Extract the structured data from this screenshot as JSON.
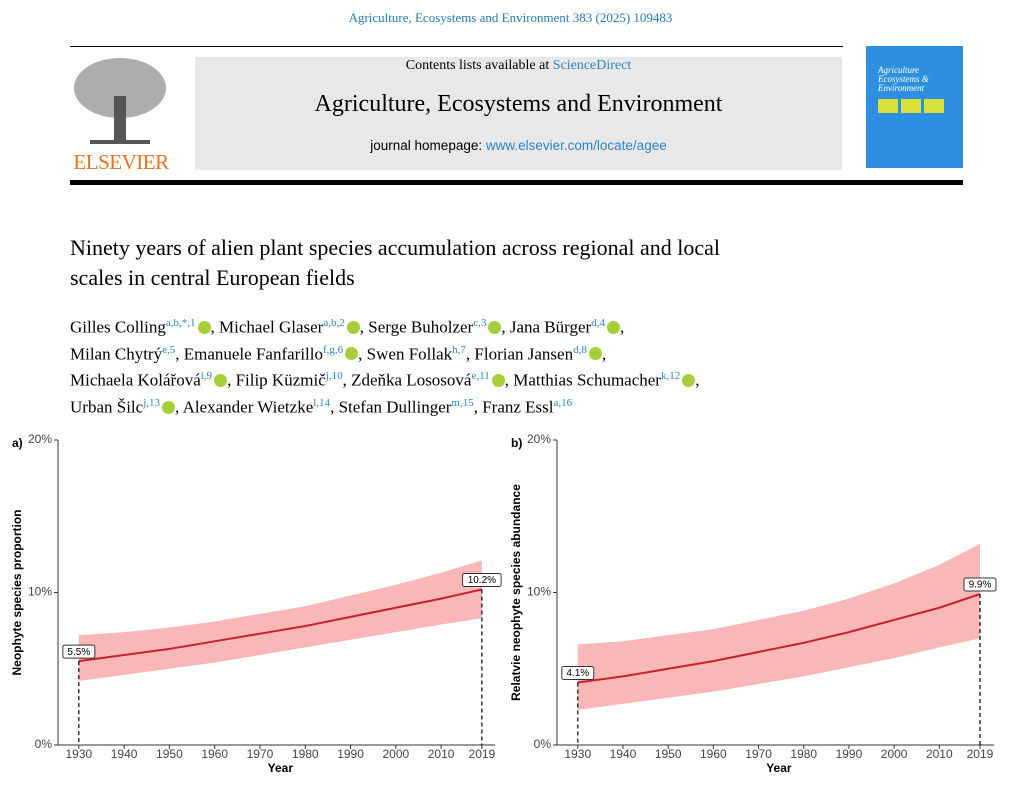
{
  "header": {
    "citation": "Agriculture, Ecosystems and Environment 383 (2025) 109483",
    "publisher": "ELSEVIER",
    "contents_prefix": "Contents lists available at",
    "contents_link": "ScienceDirect",
    "journal": "Agriculture, Ecosystems and Environment",
    "homepage_prefix": "journal homepage:",
    "homepage_link": "www.elsevier.com/locate/agee",
    "cover_title": "Agriculture Ecosystems & Environment"
  },
  "article": {
    "title_lines": [
      "Ninety years of alien plant species accumulation across regional and local",
      "scales in central European fields"
    ],
    "author_lines": [
      [
        {
          "name": "Gilles Colling",
          "sup": "a,b,*,1",
          "orcid": true,
          "sep": ","
        },
        {
          "name": "Michael Glaser",
          "sup": "a,b,2",
          "orcid": true,
          "sep": ","
        },
        {
          "name": "Serge Buholzer",
          "sup": "c,3",
          "orcid": true,
          "sep": ","
        },
        {
          "name": "Jana Bürger",
          "sup": "d,4",
          "orcid": true,
          "sep": ","
        }
      ],
      [
        {
          "name": "Milan Chytrý",
          "sup": "e,5",
          "orcid": false,
          "sep": ","
        },
        {
          "name": "Emanuele Fanfarillo",
          "sup": "f,g,6",
          "orcid": true,
          "sep": ","
        },
        {
          "name": "Swen Follak",
          "sup": "h,7",
          "orcid": false,
          "sep": ","
        },
        {
          "name": "Florian Jansen",
          "sup": "d,8",
          "orcid": true,
          "sep": ","
        }
      ],
      [
        {
          "name": "Michaela Kolářová",
          "sup": "i,9",
          "orcid": true,
          "sep": ","
        },
        {
          "name": "Filip Küzmič",
          "sup": "j,10",
          "orcid": false,
          "sep": ","
        },
        {
          "name": "Zdeňka Lososová",
          "sup": "e,11",
          "orcid": true,
          "sep": ","
        },
        {
          "name": "Matthias Schumacher",
          "sup": "k,12",
          "orcid": true,
          "sep": ","
        }
      ],
      [
        {
          "name": "Urban Šilc",
          "sup": "j,13",
          "orcid": true,
          "sep": ","
        },
        {
          "name": "Alexander Wietzke",
          "sup": "l,14",
          "orcid": false,
          "sep": ","
        },
        {
          "name": "Stefan Dullinger",
          "sup": "m,15",
          "orcid": false,
          "sep": ","
        },
        {
          "name": "Franz Essl",
          "sup": "a,16",
          "orcid": false
        }
      ]
    ]
  },
  "chart_data": [
    {
      "type": "line",
      "panel": "a)",
      "ylabel": "Neophyte species proportion",
      "xlabel": "Year",
      "color": "#c8202a",
      "band_color": "#f7a5a5",
      "x": [
        1930,
        1940,
        1950,
        1960,
        1970,
        1980,
        1990,
        2000,
        2010,
        2019
      ],
      "values": [
        5.5,
        5.9,
        6.3,
        6.8,
        7.3,
        7.8,
        8.4,
        9.0,
        9.6,
        10.2
      ],
      "value_labels": [
        "5.5%",
        null,
        null,
        null,
        null,
        null,
        null,
        null,
        null,
        "10.2%"
      ],
      "lower": [
        4.2,
        4.6,
        5.0,
        5.4,
        5.9,
        6.4,
        6.9,
        7.4,
        7.9,
        8.3
      ],
      "upper": [
        7.2,
        7.4,
        7.7,
        8.1,
        8.6,
        9.1,
        9.8,
        10.5,
        11.3,
        12.1
      ],
      "xlim": [
        1925.4,
        2021.9
      ],
      "ylim": [
        0,
        20
      ],
      "xticks": [
        1930,
        1940,
        1950,
        1960,
        1970,
        1980,
        1990,
        2000,
        2010,
        2019
      ],
      "yticks": [
        {
          "value": 0,
          "label": "0%"
        },
        {
          "value": 10,
          "label": "10%"
        },
        {
          "value": 20,
          "label": "20%"
        }
      ]
    },
    {
      "type": "line",
      "panel": "b)",
      "ylabel": "Relatvie neophyte species abundance",
      "xlabel": "Year",
      "color": "#c8202a",
      "band_color": "#f7a5a5",
      "x": [
        1930,
        1940,
        1950,
        1960,
        1970,
        1980,
        1990,
        2000,
        2010,
        2019
      ],
      "values": [
        4.1,
        4.5,
        5.0,
        5.5,
        6.1,
        6.7,
        7.4,
        8.2,
        9.0,
        9.9
      ],
      "value_labels": [
        "4.1%",
        null,
        null,
        null,
        null,
        null,
        null,
        null,
        null,
        "9.9%"
      ],
      "lower": [
        2.3,
        2.7,
        3.1,
        3.5,
        4.0,
        4.5,
        5.1,
        5.7,
        6.4,
        7.0
      ],
      "upper": [
        6.6,
        6.8,
        7.2,
        7.6,
        8.2,
        8.8,
        9.6,
        10.6,
        11.8,
        13.2
      ],
      "xlim": [
        1925.4,
        2022.1
      ],
      "ylim": [
        0,
        20
      ],
      "xticks": [
        1930,
        1940,
        1950,
        1960,
        1970,
        1980,
        1990,
        2000,
        2010,
        2019
      ],
      "yticks": [
        {
          "value": 0,
          "label": "0%"
        },
        {
          "value": 10,
          "label": "10%"
        },
        {
          "value": 20,
          "label": "20%"
        }
      ]
    }
  ]
}
